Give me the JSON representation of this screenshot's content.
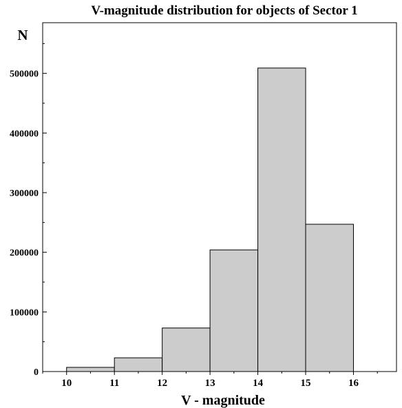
{
  "chart_data": {
    "type": "bar",
    "title": "V-magnitude distribution for objects of Sector 1",
    "ylabel": "N",
    "xlabel": "V - magnitude",
    "bins": [
      {
        "from": 10,
        "to": 11,
        "value": 7000
      },
      {
        "from": 11,
        "to": 12,
        "value": 23000
      },
      {
        "from": 12,
        "to": 13,
        "value": 73000
      },
      {
        "from": 13,
        "to": 14,
        "value": 204000
      },
      {
        "from": 14,
        "to": 15,
        "value": 509000
      },
      {
        "from": 15,
        "to": 16,
        "value": 247000
      }
    ],
    "x_ticks": [
      "10",
      "11",
      "12",
      "13",
      "14",
      "15",
      "16"
    ],
    "y_ticks": [
      "0",
      "100000",
      "200000",
      "300000",
      "400000",
      "500000"
    ],
    "xlim": [
      9.5,
      16.9
    ],
    "ylim": [
      0,
      585000
    ],
    "grid": false,
    "bar_color": "#cccccc",
    "edge_color": "#000000"
  }
}
